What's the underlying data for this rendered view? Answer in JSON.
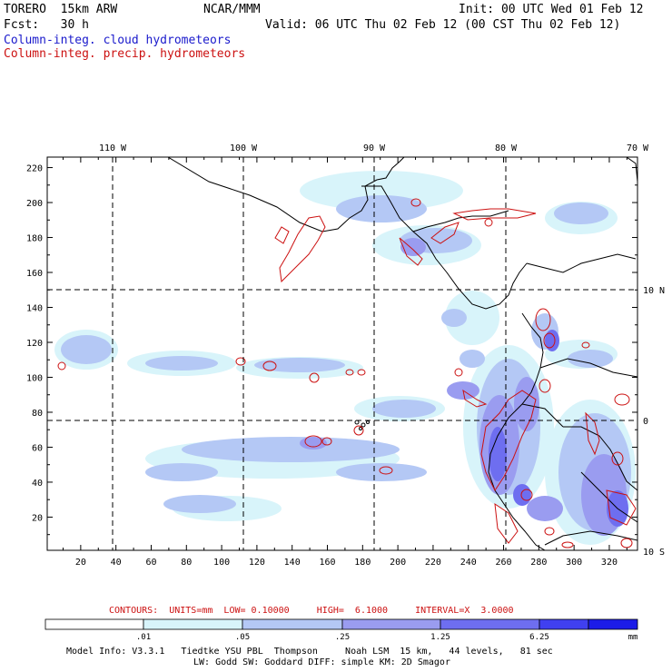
{
  "header": {
    "model": "TORERO  15km ARW",
    "org": "NCAR/MMM",
    "init": "Init: 00 UTC Wed 01 Feb 12",
    "fcst": "Fcst:   30 h",
    "valid": "Valid: 06 UTC Thu 02 Feb 12 (00 CST Thu 02 Feb 12)",
    "field1": "Column-integ. cloud hydrometeors",
    "field2": "Column-integ. precip. hydrometeors",
    "field1_color": "#1a1acc",
    "field2_color": "#cc1111"
  },
  "map": {
    "lon_labels": [
      "110 W",
      "100 W",
      "90 W",
      "80 W",
      "70 W"
    ],
    "lat_labels": [
      "10 N",
      "0",
      "10 S"
    ],
    "x_ticks": [
      "20",
      "40",
      "60",
      "80",
      "100",
      "120",
      "140",
      "160",
      "180",
      "200",
      "220",
      "240",
      "260",
      "280",
      "300",
      "320"
    ],
    "y_ticks": [
      "20",
      "40",
      "60",
      "80",
      "100",
      "120",
      "140",
      "160",
      "180",
      "200",
      "220"
    ]
  },
  "contours": {
    "label": "CONTOURS:  UNITS=mm  LOW= 0.10000     HIGH=  6.1000     INTERVAL=X  3.0000"
  },
  "colorbar": {
    "labels": [
      ".01",
      ".05",
      ".25",
      "1.25",
      "6.25"
    ],
    "unit": "mm",
    "colors": [
      "#ffffff",
      "#d8f4fa",
      "#b4c8f5",
      "#9a9cf0",
      "#6e6ef0",
      "#4040f0",
      "#1c1ce8"
    ]
  },
  "footer": {
    "line1": "Model Info: V3.3.1   Tiedtke YSU PBL  Thompson     Noah LSM  15 km,   44 levels,   81 sec",
    "line2": "LW: Godd SW: Goddard DIFF: simple KM: 2D Smagor"
  }
}
